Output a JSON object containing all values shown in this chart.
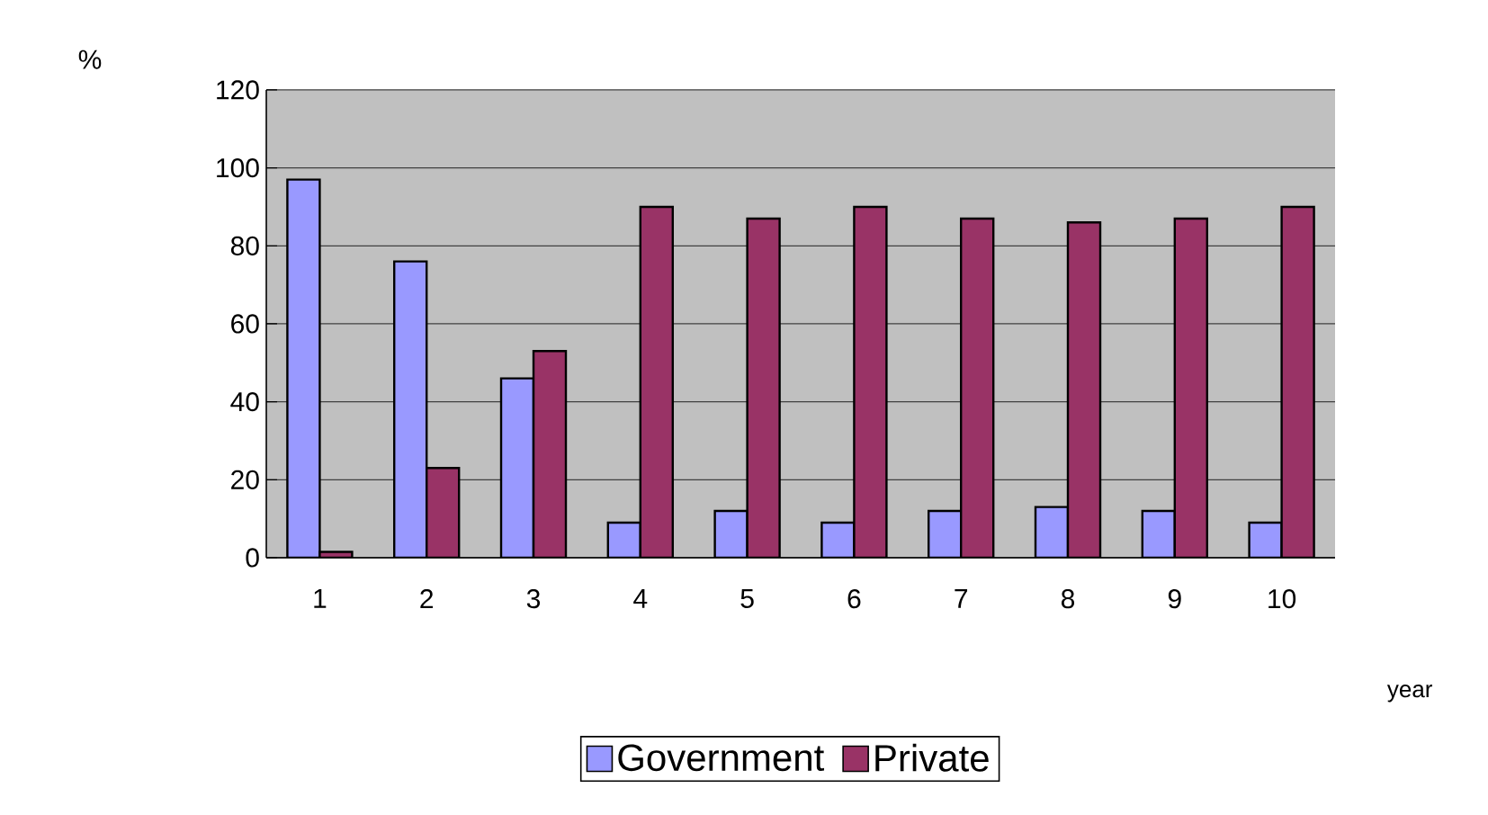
{
  "chart_data": {
    "type": "bar",
    "xlabel": "year",
    "ylabel": "%",
    "categories": [
      "1",
      "2",
      "3",
      "4",
      "5",
      "6",
      "7",
      "8",
      "9",
      "10"
    ],
    "series": [
      {
        "name": "Government",
        "color": "#9999ff",
        "values": [
          97,
          76,
          46,
          9,
          12,
          9,
          12,
          13,
          12,
          9
        ]
      },
      {
        "name": "Private",
        "color": "#993366",
        "values": [
          1.5,
          23,
          53,
          90,
          87,
          90,
          87,
          86,
          87,
          90
        ]
      }
    ],
    "ylim": [
      0,
      120
    ],
    "yticks": [
      0,
      20,
      40,
      60,
      80,
      100,
      120
    ],
    "grid": "y",
    "legend": "bottom"
  }
}
